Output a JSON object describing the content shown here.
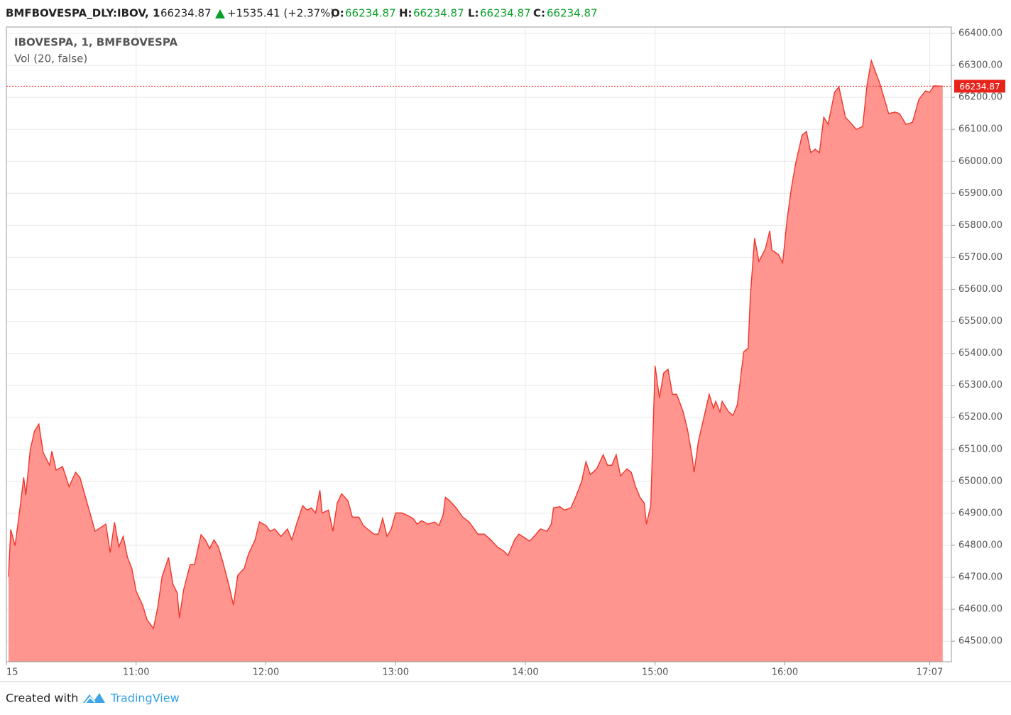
{
  "header": {
    "symbol": "BMFBOVESPA_DLY:IBOV, 1",
    "price": "66234.87",
    "change": "+1535.41 (+2.37%)",
    "open_label": "O:",
    "open": "66234.87",
    "high_label": "H:",
    "high": "66234.87",
    "low_label": "L:",
    "low": "66234.87",
    "close_label": "C:",
    "close": "66234.87"
  },
  "chart_data": {
    "type": "area",
    "title": "IBOVESPA, 1, BMFBOVESPA",
    "subtitle": "Vol (20, false)",
    "line_color": "#f0352c",
    "fill_color": "#ff8a82",
    "grid": true,
    "x": [
      "10:01",
      "10:02",
      "10:04",
      "10:06",
      "10:08",
      "10:09",
      "10:11",
      "10:13",
      "10:15",
      "10:17",
      "10:20",
      "10:21",
      "10:23",
      "10:26",
      "10:29",
      "10:32",
      "10:34",
      "10:38",
      "10:41",
      "10:46",
      "10:48",
      "10:50",
      "10:52",
      "10:54",
      "10:56",
      "10:58",
      "11:00",
      "11:03",
      "11:05",
      "11:08",
      "11:10",
      "11:12",
      "11:15",
      "11:17",
      "11:19",
      "11:20",
      "11:22",
      "11:25",
      "11:27",
      "11:30",
      "11:32",
      "11:34",
      "11:36",
      "11:38",
      "11:40",
      "11:43",
      "11:45",
      "11:47",
      "11:50",
      "11:52",
      "11:55",
      "11:57",
      "12:00",
      "12:02",
      "12:04",
      "12:07",
      "12:10",
      "12:12",
      "12:14",
      "12:17",
      "12:19",
      "12:21",
      "12:23",
      "12:25",
      "12:26",
      "12:29",
      "12:31",
      "12:33",
      "12:35",
      "12:38",
      "12:40",
      "12:43",
      "12:45",
      "12:47",
      "12:50",
      "12:52",
      "12:54",
      "12:56",
      "12:58",
      "13:00",
      "13:03",
      "13:05",
      "13:08",
      "13:10",
      "13:12",
      "13:15",
      "13:18",
      "13:20",
      "13:22",
      "13:23",
      "13:25",
      "13:28",
      "13:31",
      "13:34",
      "13:38",
      "13:41",
      "13:44",
      "13:47",
      "13:50",
      "13:52",
      "13:55",
      "13:57",
      "14:00",
      "14:02",
      "14:04",
      "14:07",
      "14:10",
      "14:12",
      "14:13",
      "14:16",
      "14:18",
      "14:21",
      "14:23",
      "14:26",
      "14:28",
      "14:30",
      "14:33",
      "14:36",
      "14:38",
      "14:40",
      "14:42",
      "14:44",
      "14:47",
      "14:49",
      "14:51",
      "14:53",
      "14:55",
      "14:56",
      "14:58",
      "15:00",
      "15:02",
      "15:04",
      "15:06",
      "15:08",
      "15:10",
      "15:13",
      "15:15",
      "15:17",
      "15:18",
      "15:20",
      "15:22",
      "15:23",
      "15:25",
      "15:27",
      "15:28",
      "15:30",
      "15:31",
      "15:34",
      "15:36",
      "15:38",
      "15:40",
      "15:41",
      "15:43",
      "15:44",
      "15:46",
      "15:48",
      "15:51",
      "15:53",
      "15:54",
      "15:57",
      "15:59",
      "16:01",
      "16:03",
      "16:05",
      "16:08",
      "16:10",
      "16:12",
      "16:14",
      "16:16",
      "16:18",
      "16:20",
      "16:23",
      "16:25",
      "16:28",
      "16:31",
      "16:33",
      "16:36",
      "16:38",
      "16:40",
      "16:42",
      "16:44",
      "16:48",
      "16:51",
      "16:53",
      "16:56",
      "16:59",
      "17:02",
      "17:05",
      "17:07",
      "17:09",
      "17:13"
    ],
    "values": [
      64702,
      64850,
      64799,
      64901,
      65012,
      64957,
      65097,
      65157,
      65179,
      65090,
      65050,
      65094,
      65035,
      65046,
      64983,
      65028,
      65012,
      64917,
      64844,
      64866,
      64777,
      64872,
      64795,
      64828,
      64762,
      64728,
      64657,
      64613,
      64568,
      64540,
      64606,
      64702,
      64762,
      64679,
      64651,
      64573,
      64662,
      64740,
      64740,
      64833,
      64817,
      64790,
      64817,
      64795,
      64750,
      64673,
      64613,
      64706,
      64728,
      64773,
      64817,
      64873,
      64862,
      64844,
      64851,
      64828,
      64851,
      64817,
      64862,
      64924,
      64910,
      64917,
      64901,
      64972,
      64901,
      64910,
      64844,
      64932,
      64961,
      64939,
      64888,
      64888,
      64862,
      64851,
      64835,
      64835,
      64884,
      64828,
      64851,
      64901,
      64901,
      64895,
      64884,
      64866,
      64877,
      64866,
      64873,
      64862,
      64895,
      64950,
      64939,
      64917,
      64888,
      64873,
      64835,
      64835,
      64817,
      64795,
      64782,
      64768,
      64817,
      64835,
      64822,
      64813,
      64828,
      64851,
      64844,
      64866,
      64917,
      64921,
      64910,
      64917,
      64946,
      64999,
      65061,
      65021,
      65039,
      65083,
      65050,
      65050,
      65083,
      65017,
      65039,
      65028,
      64983,
      64950,
      64932,
      64866,
      64924,
      65361,
      65261,
      65339,
      65350,
      65272,
      65272,
      65217,
      65161,
      65083,
      65028,
      65124,
      65183,
      65212,
      65272,
      65228,
      65250,
      65217,
      65250,
      65217,
      65206,
      65239,
      65350,
      65405,
      65416,
      65572,
      65760,
      65687,
      65727,
      65783,
      65723,
      65709,
      65683,
      65816,
      65916,
      65994,
      66082,
      66093,
      66027,
      66038,
      66027,
      66138,
      66116,
      66216,
      66233,
      66138,
      66116,
      66100,
      66109,
      66238,
      66315,
      66278,
      66242,
      66149,
      66154,
      66149,
      66116,
      66122,
      66194,
      66220,
      66216,
      66236,
      66234.87
    ],
    "last_value": 66234.87,
    "last_value_color": "#e8231c",
    "xlim": [
      "10:00",
      "17:17"
    ],
    "xticks": [
      {
        "value": "10:00",
        "label": "15"
      },
      "11:00",
      "12:00",
      "13:00",
      "14:00",
      "15:00",
      "16:00",
      "17:07"
    ],
    "ylim": [
      64436,
      66420
    ],
    "yticks": [
      {
        "value": 64500,
        "label": "64500.00"
      },
      {
        "value": 64600,
        "label": "64600.00"
      },
      {
        "value": 64700,
        "label": "64700.00"
      },
      {
        "value": 64800,
        "label": "64800.00"
      },
      {
        "value": 64900,
        "label": "64900.00"
      },
      {
        "value": 65000,
        "label": "65000.00"
      },
      {
        "value": 65100,
        "label": "65100.00"
      },
      {
        "value": 65200,
        "label": "65200.00"
      },
      {
        "value": 65300,
        "label": "65300.00"
      },
      {
        "value": 65400,
        "label": "65400.00"
      },
      {
        "value": 65500,
        "label": "65500.00"
      },
      {
        "value": 65600,
        "label": "65600.00"
      },
      {
        "value": 65700,
        "label": "65700.00"
      },
      {
        "value": 65800,
        "label": "65800.00"
      },
      {
        "value": 65900,
        "label": "65900.00"
      },
      {
        "value": 66000,
        "label": "66000.00"
      },
      {
        "value": 66100,
        "label": "66100.00"
      },
      {
        "value": 66200,
        "label": "66200.00"
      },
      {
        "value": 66300,
        "label": "66300.00"
      },
      {
        "value": 66400,
        "label": "66400.00"
      }
    ]
  },
  "footer": {
    "created": "Created with",
    "brand": "TradingView"
  }
}
